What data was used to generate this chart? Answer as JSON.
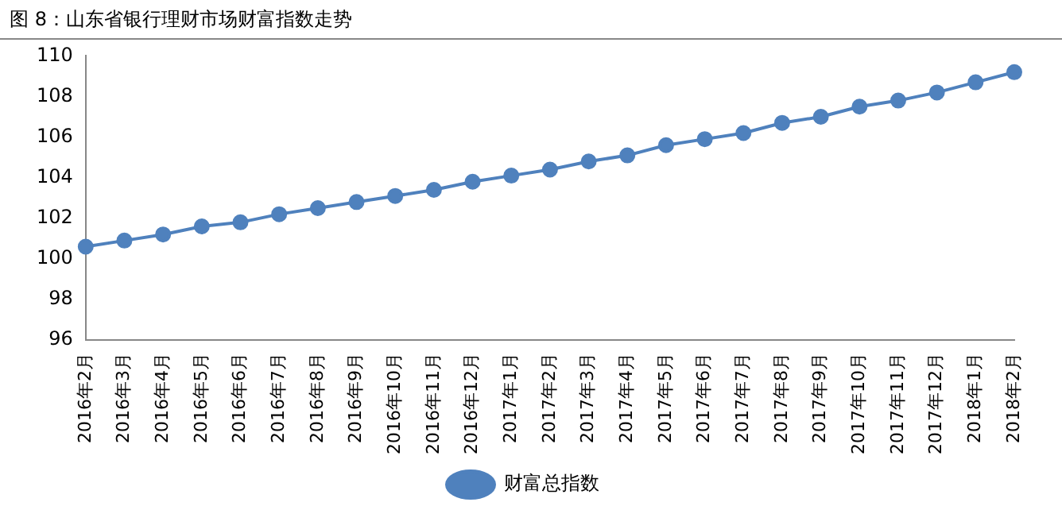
{
  "chart_data": {
    "type": "line",
    "title": "图 8：山东省银行理财市场财富指数走势",
    "categories": [
      "2016年2月",
      "2016年3月",
      "2016年4月",
      "2016年5月",
      "2016年6月",
      "2016年7月",
      "2016年8月",
      "2016年9月",
      "2016年10月",
      "2016年11月",
      "2016年12月",
      "2017年1月",
      "2017年2月",
      "2017年3月",
      "2017年4月",
      "2017年5月",
      "2017年6月",
      "2017年7月",
      "2017年8月",
      "2017年9月",
      "2017年10月",
      "2017年11月",
      "2017年12月",
      "2018年1月",
      "2018年2月"
    ],
    "series": [
      {
        "name": "财富总指数",
        "color": "#4f81bd",
        "values": [
          100.6,
          100.9,
          101.2,
          101.6,
          101.8,
          102.2,
          102.5,
          102.8,
          103.1,
          103.4,
          103.8,
          104.1,
          104.4,
          104.8,
          105.1,
          105.6,
          105.9,
          106.2,
          106.7,
          107.0,
          107.5,
          107.8,
          108.2,
          108.7,
          109.2
        ]
      }
    ],
    "ylim": [
      96,
      110
    ],
    "yticks": [
      96,
      98,
      100,
      102,
      104,
      106,
      108,
      110
    ],
    "grid": false,
    "legend": "bottom",
    "marker": "circle",
    "line_style": "solid"
  }
}
